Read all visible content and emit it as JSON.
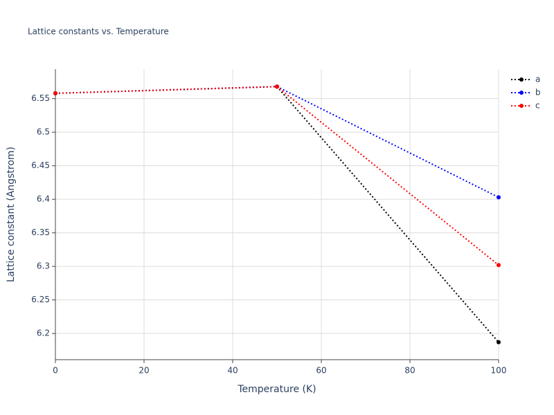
{
  "chart_data": {
    "type": "line",
    "title": "Lattice constants vs. Temperature",
    "x_label": "Temperature (K)",
    "y_label": "Lattice constant (Angstrom)",
    "x": [
      0,
      50,
      100
    ],
    "series": [
      {
        "name": "a",
        "color": "#000000",
        "values": [
          6.558,
          6.568,
          6.187
        ]
      },
      {
        "name": "b",
        "color": "#0000ff",
        "values": [
          6.558,
          6.568,
          6.403
        ]
      },
      {
        "name": "c",
        "color": "#ff0000",
        "values": [
          6.558,
          6.568,
          6.302
        ]
      }
    ],
    "xlim": [
      0,
      100
    ],
    "xticks": [
      0,
      20,
      40,
      60,
      80,
      100
    ],
    "ylim": [
      6.161,
      6.594
    ],
    "yticks": [
      6.2,
      6.25,
      6.3,
      6.35,
      6.4,
      6.45,
      6.5,
      6.55
    ],
    "grid": true,
    "line_style": "dotted",
    "legend": "top-right"
  }
}
